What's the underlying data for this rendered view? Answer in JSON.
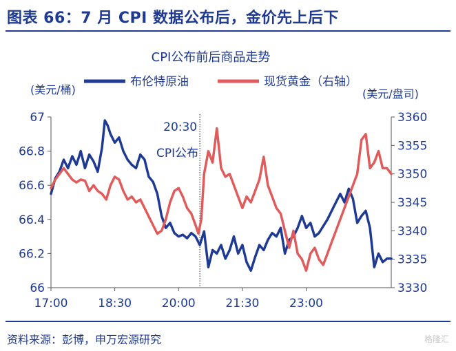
{
  "header": {
    "title": "图表 66：7 月 CPI 数据公布后，金价先上后下"
  },
  "footer": {
    "source": "资料来源：彭博，申万宏源研究",
    "watermark": "格隆汇"
  },
  "colors": {
    "oil": "#1f3a93",
    "gold": "#e05b5b",
    "accent": "#1f3a93"
  },
  "chart_data": {
    "type": "line",
    "title": "CPI公布前后商品走势",
    "y_left_label": "(美元/桶)",
    "y_right_label": "(美元/盘司)",
    "ylim_left": [
      66,
      67
    ],
    "ylim_right": [
      3330,
      3360
    ],
    "yticks_left": [
      "67",
      "66.8",
      "66.6",
      "66.4",
      "66.2",
      "66"
    ],
    "yticks_right": [
      "3360",
      "3355",
      "3350",
      "3345",
      "3340",
      "3335",
      "3330"
    ],
    "xlim": [
      0,
      480
    ],
    "xticks": [
      {
        "t": 0,
        "label": "17:00"
      },
      {
        "t": 90,
        "label": "18:30"
      },
      {
        "t": 180,
        "label": "20:00"
      },
      {
        "t": 270,
        "label": "21:30"
      },
      {
        "t": 360,
        "label": "23:00"
      }
    ],
    "annotation": {
      "t": 210,
      "time": "20:30",
      "text": "CPI公布"
    },
    "series": [
      {
        "name": "布伦特原油",
        "axis": "left",
        "t": [
          0,
          6,
          12,
          18,
          24,
          30,
          36,
          42,
          48,
          54,
          60,
          66,
          72,
          76,
          80,
          84,
          90,
          96,
          102,
          108,
          114,
          120,
          126,
          132,
          138,
          144,
          150,
          156,
          162,
          168,
          174,
          180,
          186,
          192,
          198,
          204,
          210,
          216,
          222,
          228,
          234,
          240,
          246,
          252,
          258,
          264,
          270,
          276,
          282,
          288,
          294,
          300,
          306,
          312,
          318,
          324,
          330,
          336,
          342,
          348,
          354,
          360,
          366,
          372,
          378,
          384,
          390,
          396,
          402,
          408,
          414,
          420,
          426,
          432,
          438,
          444,
          450,
          456,
          462,
          468,
          474,
          480
        ],
        "values": [
          66.55,
          66.64,
          66.68,
          66.75,
          66.7,
          66.77,
          66.72,
          66.8,
          66.7,
          66.78,
          66.74,
          66.68,
          66.82,
          66.98,
          66.95,
          66.9,
          66.85,
          66.88,
          66.8,
          66.75,
          66.72,
          66.7,
          66.78,
          66.75,
          66.65,
          66.62,
          66.55,
          66.42,
          66.35,
          66.38,
          66.32,
          66.3,
          66.31,
          66.29,
          66.32,
          66.3,
          66.25,
          66.33,
          66.12,
          66.22,
          66.2,
          66.25,
          66.17,
          66.22,
          66.3,
          66.2,
          66.25,
          66.15,
          66.1,
          66.18,
          66.25,
          66.22,
          66.28,
          66.32,
          66.3,
          66.35,
          66.2,
          66.28,
          66.3,
          66.35,
          66.42,
          66.35,
          66.38,
          66.3,
          66.32,
          66.36,
          66.4,
          66.45,
          66.5,
          66.55,
          66.5,
          66.58,
          66.52,
          66.38,
          66.42,
          66.45,
          66.35,
          66.12,
          66.2,
          66.15,
          66.17,
          66.17
        ]
      },
      {
        "name": "现货黄金（右轴）",
        "axis": "right",
        "t": [
          0,
          6,
          12,
          18,
          24,
          30,
          36,
          42,
          48,
          54,
          60,
          66,
          72,
          78,
          84,
          90,
          96,
          102,
          108,
          114,
          120,
          126,
          132,
          138,
          144,
          150,
          156,
          162,
          168,
          174,
          180,
          186,
          192,
          198,
          204,
          208,
          212,
          216,
          222,
          228,
          234,
          240,
          246,
          252,
          258,
          264,
          270,
          276,
          282,
          288,
          294,
          300,
          306,
          312,
          318,
          324,
          330,
          336,
          342,
          348,
          354,
          360,
          366,
          372,
          378,
          384,
          390,
          396,
          402,
          408,
          414,
          420,
          426,
          432,
          438,
          444,
          450,
          456,
          462,
          468,
          474,
          480
        ],
        "values": [
          3347.5,
          3349,
          3350,
          3351,
          3350,
          3349,
          3348.5,
          3349,
          3348.8,
          3347,
          3348,
          3347,
          3346.5,
          3345.5,
          3348,
          3349.5,
          3349,
          3347,
          3345.5,
          3346,
          3345,
          3345.5,
          3344,
          3342.5,
          3341,
          3339.5,
          3340,
          3342,
          3345,
          3347,
          3347.5,
          3346,
          3344,
          3343,
          3341,
          3339.5,
          3342,
          3350,
          3354,
          3352,
          3358,
          3351,
          3349.5,
          3350,
          3348,
          3346,
          3344,
          3346,
          3345,
          3347,
          3349,
          3353,
          3348,
          3346,
          3344,
          3343,
          3340,
          3337,
          3340,
          3336,
          3335,
          3333,
          3336,
          3337,
          3335,
          3334,
          3336,
          3338,
          3340,
          3342,
          3344,
          3346,
          3348,
          3350,
          3356,
          3357,
          3351,
          3352,
          3354,
          3351,
          3351,
          3350
        ]
      }
    ]
  }
}
